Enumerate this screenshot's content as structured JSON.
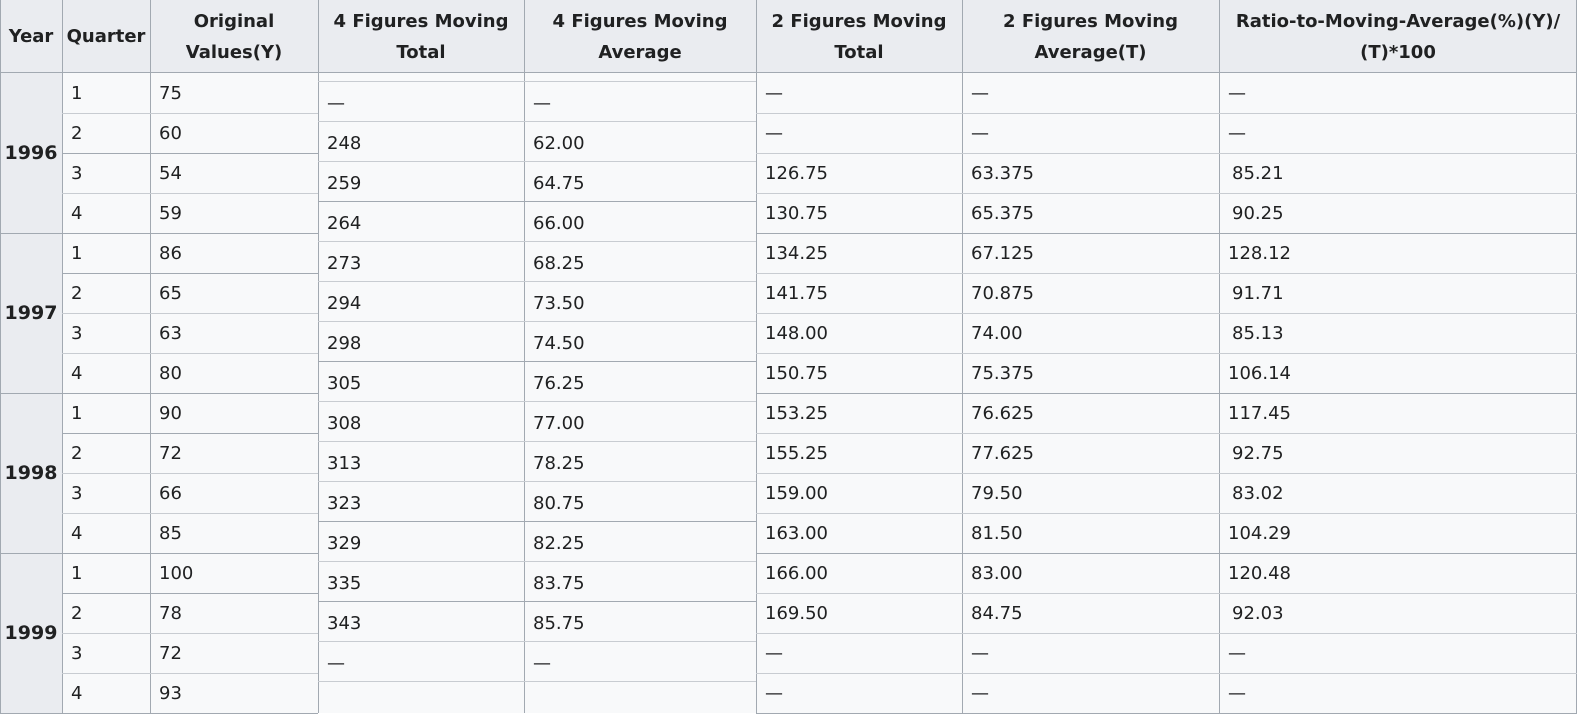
{
  "table": {
    "headers": [
      "Year",
      "Quarter",
      "Original Values(Y)",
      "4 Figures Moving Total",
      "4 Figures Moving Average",
      "2 Figures Moving Total",
      "2 Figures Moving Average(T)",
      "Ratio-to-Moving-Average(%)(Y)/(T)*100"
    ],
    "years": [
      "1996",
      "1997",
      "1998",
      "1999"
    ],
    "quarters": [
      "1",
      "2",
      "3",
      "4",
      "1",
      "2",
      "3",
      "4",
      "1",
      "2",
      "3",
      "4",
      "1",
      "2",
      "3",
      "4"
    ],
    "original_values": [
      "75",
      "60",
      "54",
      "59",
      "86",
      "65",
      "63",
      "80",
      "90",
      "72",
      "66",
      "85",
      "100",
      "78",
      "72",
      "93"
    ],
    "four_figure_total": [
      "—",
      "248",
      "259",
      "264",
      "273",
      "294",
      "298",
      "305",
      "308",
      "313",
      "323",
      "329",
      "335",
      "343",
      "—"
    ],
    "four_figure_average": [
      "—",
      "62.00",
      "64.75",
      "66.00",
      "68.25",
      "73.50",
      "74.50",
      "76.25",
      "77.00",
      "78.25",
      "80.75",
      "82.25",
      "83.75",
      "85.75",
      "—"
    ],
    "two_figure_total": [
      "—",
      "—",
      "126.75",
      "130.75",
      "134.25",
      "141.75",
      "148.00",
      "150.75",
      "153.25",
      "155.25",
      "159.00",
      "163.00",
      "166.00",
      "169.50",
      "—",
      "—"
    ],
    "two_figure_average": [
      "—",
      "—",
      "63.375",
      "65.375",
      "67.125",
      "70.875",
      "74.00",
      "75.375",
      "76.625",
      "77.625",
      "79.50",
      "81.50",
      "83.00",
      "84.75",
      "—",
      "—"
    ],
    "ratio": [
      "—",
      "—",
      "85.21",
      "90.25",
      "128.12",
      "91.71",
      "85.13",
      "106.14",
      "117.45",
      "92.75",
      "83.02",
      "104.29",
      "120.48",
      "92.03",
      "—",
      "—"
    ]
  }
}
